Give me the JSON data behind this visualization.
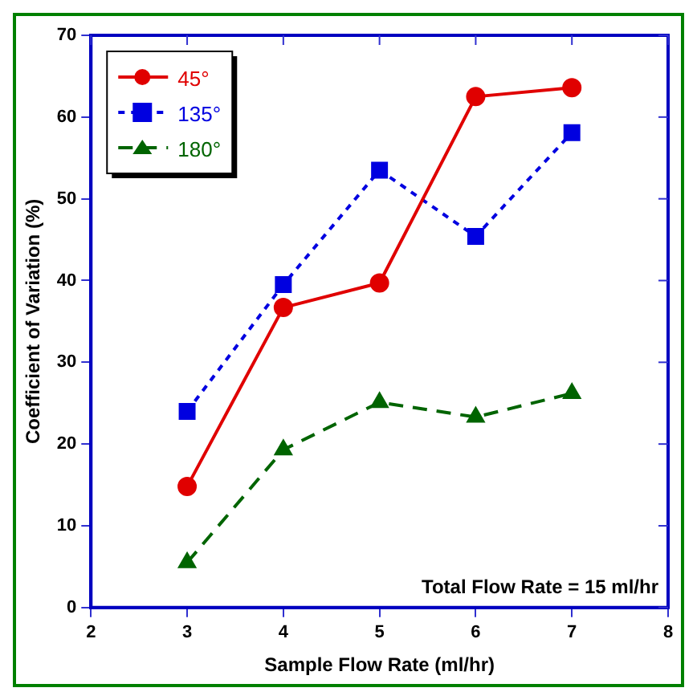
{
  "chart_data": {
    "type": "line",
    "xlabel": "Sample Flow Rate (ml/hr)",
    "ylabel": "Coefficient of Variation (%)",
    "x": [
      3,
      4,
      5,
      6,
      7
    ],
    "series": [
      {
        "name": "45°",
        "color": "#e00000",
        "marker": "circle",
        "line_style": "solid",
        "values": [
          14.8,
          36.7,
          39.7,
          62.5,
          63.6
        ]
      },
      {
        "name": "135°",
        "color": "#0000e0",
        "marker": "square",
        "line_style": "dotted",
        "values": [
          24.0,
          39.5,
          53.5,
          45.4,
          58.1
        ]
      },
      {
        "name": "180°",
        "color": "#006400",
        "marker": "triangle",
        "line_style": "dashed",
        "values": [
          5.5,
          19.3,
          25.1,
          23.3,
          26.2
        ]
      }
    ],
    "xlim": [
      2,
      8
    ],
    "xticks": [
      2,
      3,
      4,
      5,
      6,
      7,
      8
    ],
    "ylim": [
      0,
      70
    ],
    "yticks": [
      0,
      10,
      20,
      30,
      40,
      50,
      60,
      70
    ],
    "grid": false,
    "legend": "top left",
    "annotations": [
      "Total Flow Rate = 15 ml/hr"
    ]
  }
}
